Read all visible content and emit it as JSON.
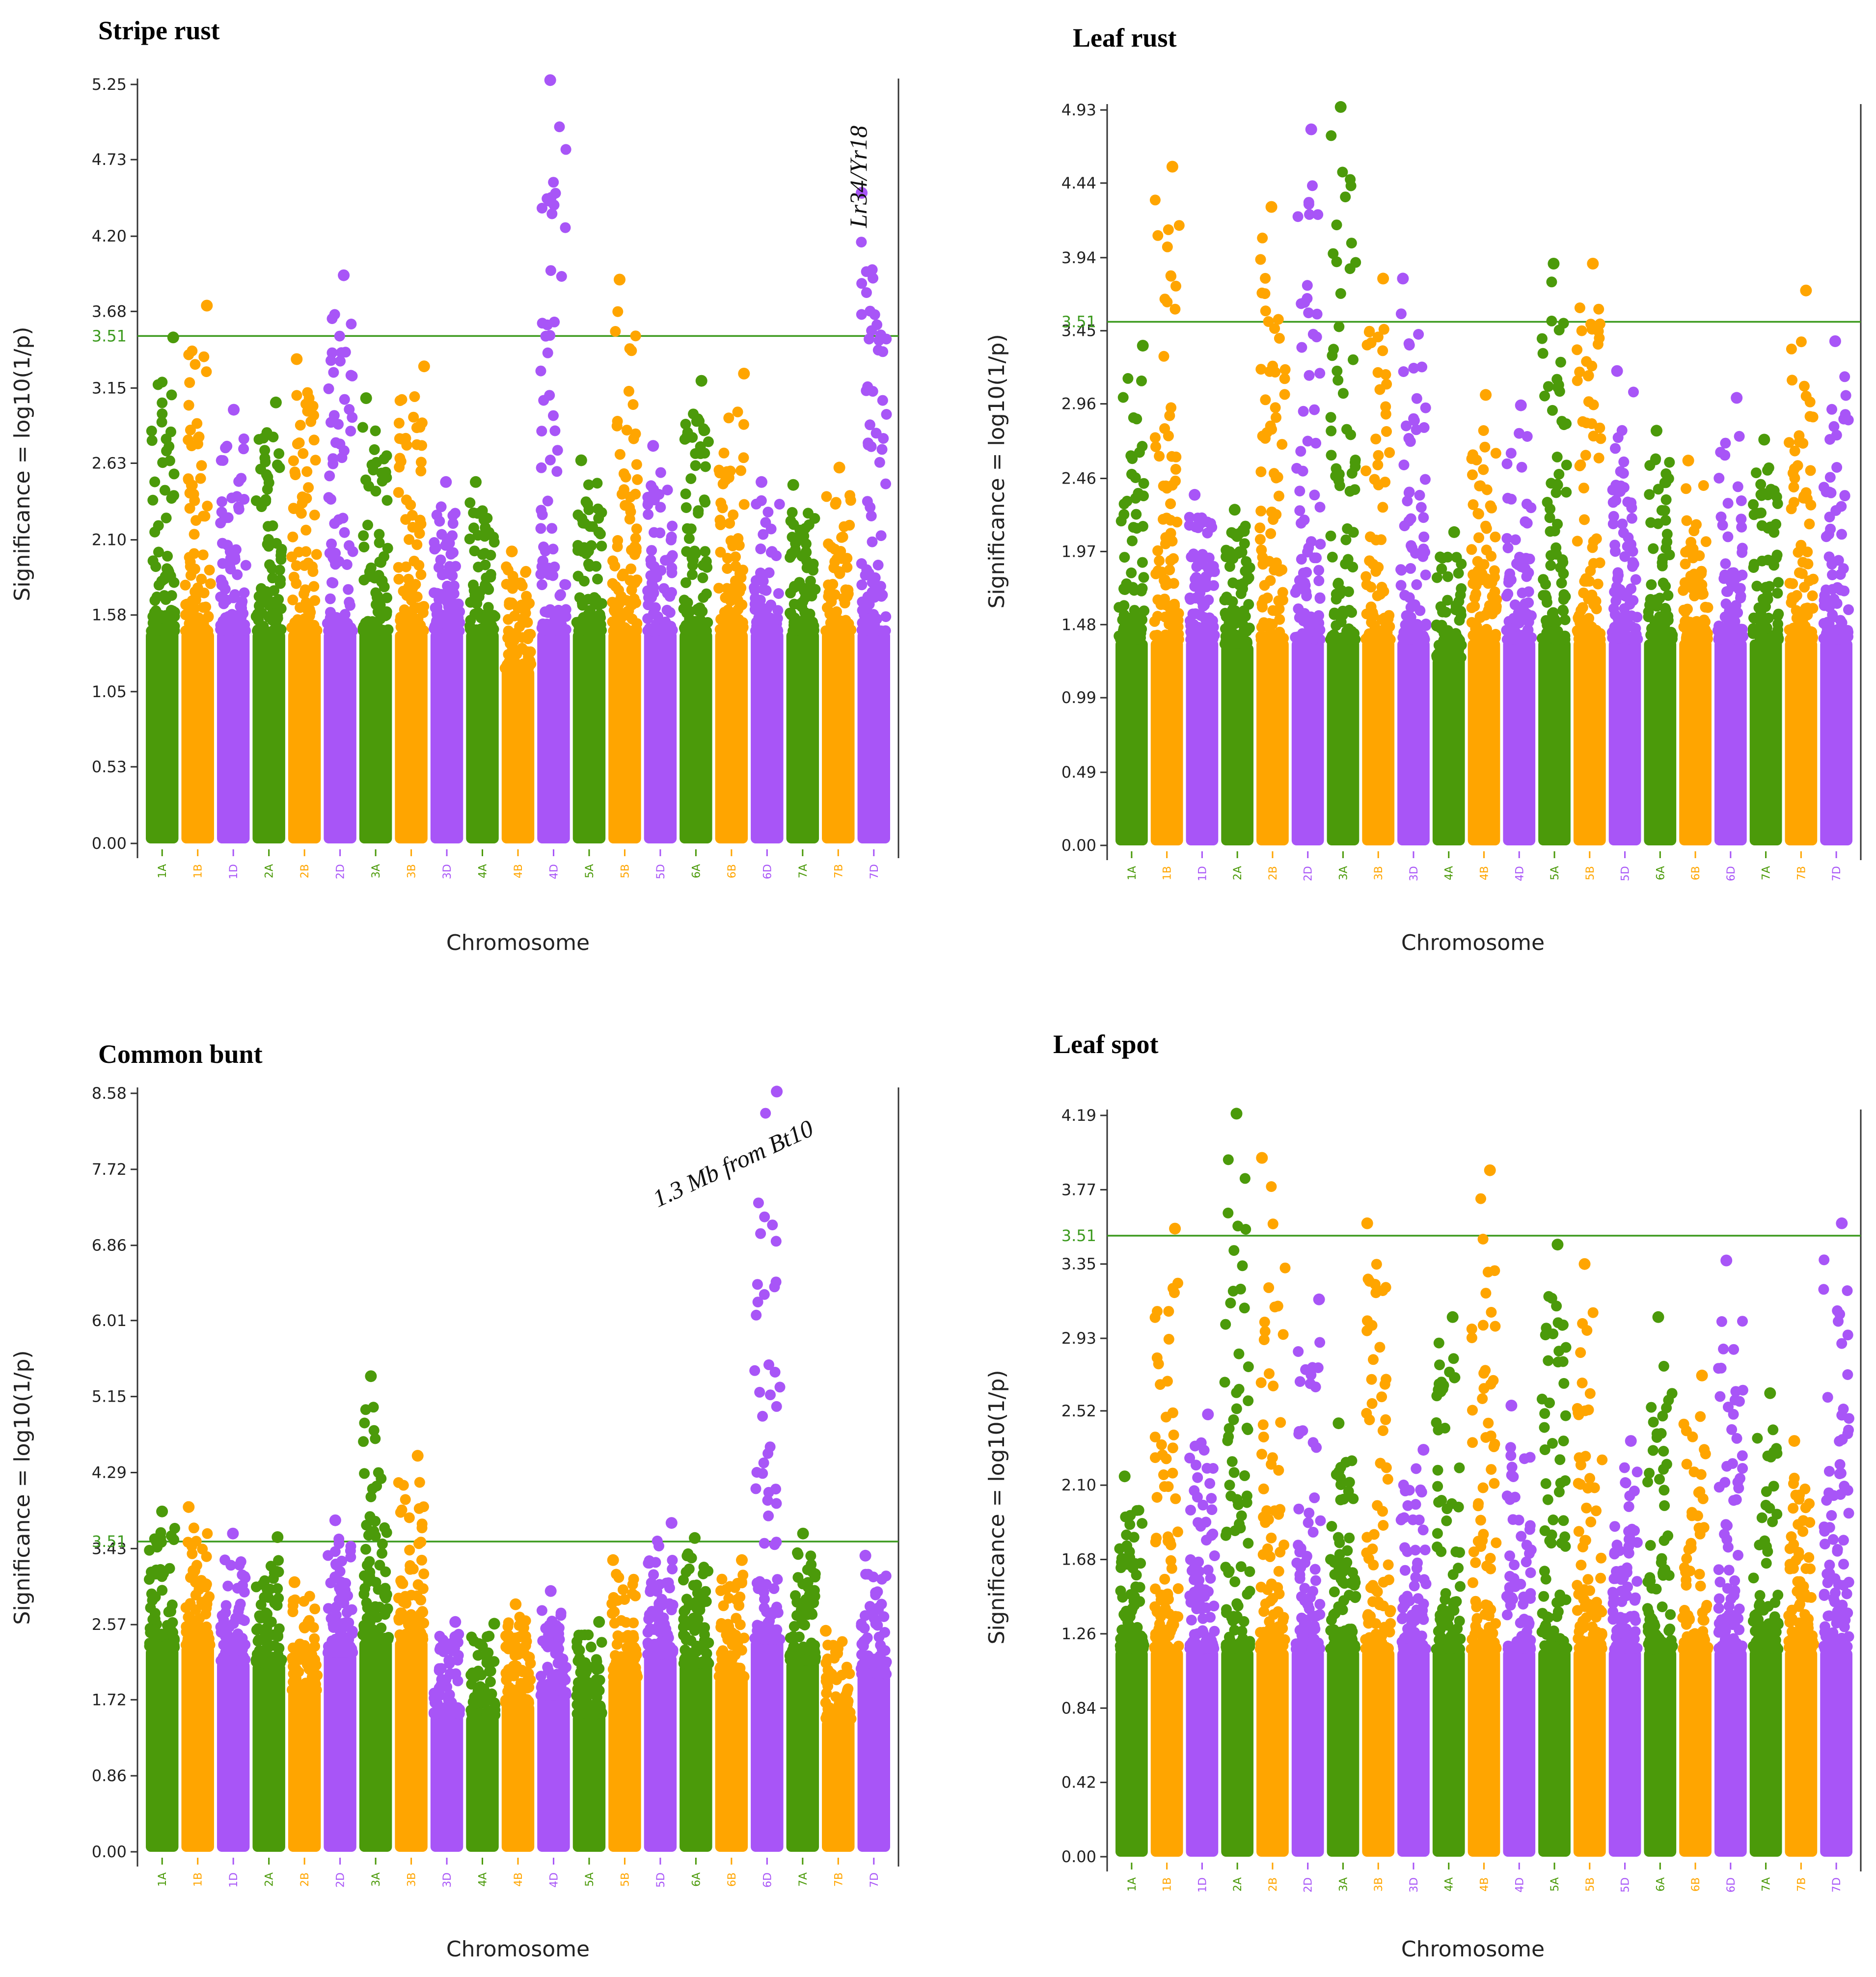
{
  "figure": {
    "colors": [
      "#4b9a0a",
      "#ffa500",
      "#a855f7"
    ],
    "threshold_color": "#3c9a1e"
  },
  "chart_data": [
    {
      "type": "scatter",
      "title": "Stripe rust",
      "xlabel": "Chromosome",
      "ylabel": "Significance = log10(1/p)",
      "categories": [
        "1A",
        "1B",
        "1D",
        "2A",
        "2B",
        "2D",
        "3A",
        "3B",
        "3D",
        "4A",
        "4B",
        "4D",
        "5A",
        "5B",
        "5D",
        "6A",
        "6B",
        "6D",
        "7A",
        "7B",
        "7D"
      ],
      "yticks": [
        "0.00",
        "0.53",
        "1.05",
        "1.58",
        "2.10",
        "2.63",
        "3.15",
        "3.68",
        "4.20",
        "4.73",
        "5.25"
      ],
      "ylim": [
        0,
        5.25
      ],
      "threshold": 3.51,
      "threshold_label": "3.51",
      "max_by_chromosome": [
        3.5,
        3.72,
        3.0,
        3.05,
        3.35,
        3.93,
        3.08,
        3.3,
        2.5,
        2.5,
        2.02,
        5.28,
        2.65,
        3.9,
        2.75,
        3.2,
        3.25,
        2.5,
        2.48,
        2.6,
        4.5
      ],
      "annotations": [
        {
          "text": "Lr34/Yr18",
          "x": "7D",
          "y": 4.5
        }
      ]
    },
    {
      "type": "scatter",
      "title": "Leaf rust",
      "xlabel": "Chromosome",
      "ylabel": "Significance = log10(1/p)",
      "categories": [
        "1A",
        "1B",
        "1D",
        "2A",
        "2B",
        "2D",
        "3A",
        "3B",
        "3D",
        "4A",
        "4B",
        "4D",
        "5A",
        "5B",
        "5D",
        "6A",
        "6B",
        "6D",
        "7A",
        "7B",
        "7D"
      ],
      "yticks": [
        "0.00",
        "0.49",
        "0.99",
        "1.48",
        "1.97",
        "2.46",
        "2.96",
        "3.45",
        "3.94",
        "4.44",
        "4.93"
      ],
      "ylim": [
        0,
        4.93
      ],
      "threshold": 3.51,
      "threshold_label": "3.51",
      "max_by_chromosome": [
        3.35,
        4.55,
        2.35,
        2.25,
        4.28,
        4.8,
        4.95,
        3.8,
        3.8,
        2.1,
        3.02,
        2.95,
        3.9,
        3.9,
        3.18,
        2.78,
        2.58,
        3.0,
        2.72,
        3.72,
        3.38
      ],
      "annotations": []
    },
    {
      "type": "scatter",
      "title": "Common bunt",
      "xlabel": "Chromosome",
      "ylabel": "Significance = log10(1/p)",
      "categories": [
        "1A",
        "1B",
        "1D",
        "2A",
        "2B",
        "2D",
        "3A",
        "3B",
        "3D",
        "4A",
        "4B",
        "4D",
        "5A",
        "5B",
        "5D",
        "6A",
        "6B",
        "6D",
        "7A",
        "7B",
        "7D"
      ],
      "yticks": [
        "0.00",
        "0.86",
        "1.72",
        "2.57",
        "3.43",
        "4.29",
        "5.15",
        "6.01",
        "6.86",
        "7.72",
        "8.58"
      ],
      "ylim": [
        0,
        8.58
      ],
      "threshold": 3.51,
      "threshold_label": "3.51",
      "max_by_chromosome": [
        3.85,
        3.9,
        3.6,
        3.56,
        3.05,
        3.75,
        5.38,
        4.48,
        2.6,
        2.58,
        2.8,
        2.95,
        2.6,
        3.3,
        3.72,
        3.55,
        3.3,
        8.6,
        3.6,
        2.5,
        3.35
      ],
      "annotations": [
        {
          "text": "1.3 Mb from Bt10",
          "x": "6D",
          "y": 8.2
        }
      ]
    },
    {
      "type": "scatter",
      "title": "Leaf spot",
      "xlabel": "Chromosome",
      "ylabel": "Significance = log10(1/p)",
      "categories": [
        "1A",
        "1B",
        "1D",
        "2A",
        "2B",
        "2D",
        "3A",
        "3B",
        "3D",
        "4A",
        "4B",
        "4D",
        "5A",
        "5B",
        "5D",
        "6A",
        "6B",
        "6D",
        "7A",
        "7B",
        "7D"
      ],
      "yticks": [
        "0.00",
        "0.42",
        "0.84",
        "1.26",
        "1.68",
        "2.10",
        "2.52",
        "2.93",
        "3.35",
        "3.77",
        "4.19"
      ],
      "ylim": [
        0,
        4.19
      ],
      "threshold": 3.51,
      "threshold_label": "3.51",
      "max_by_chromosome": [
        2.15,
        3.55,
        2.5,
        4.2,
        3.95,
        3.15,
        2.45,
        3.58,
        2.3,
        3.05,
        3.88,
        2.55,
        3.46,
        3.35,
        2.35,
        3.05,
        2.72,
        3.37,
        2.62,
        2.35,
        3.58
      ],
      "annotations": []
    }
  ]
}
